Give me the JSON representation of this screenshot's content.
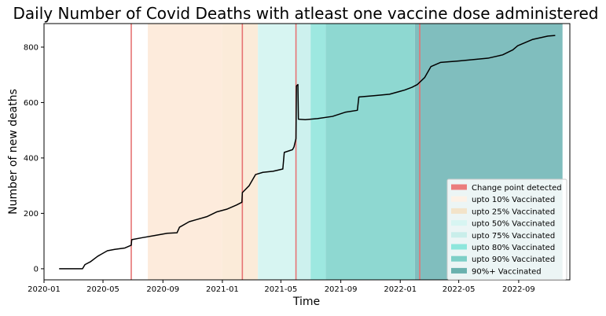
{
  "chart_data": {
    "type": "line",
    "title": "Daily Number of Covid Deaths with atleast one vaccine dose administered",
    "xlabel": "Time",
    "ylabel": "Number of new deaths",
    "xlim": [
      "2020-01-01",
      "2022-12-15"
    ],
    "ylim": [
      -40,
      885
    ],
    "x_ticks": [
      "2020-01",
      "2020-05",
      "2020-09",
      "2021-01",
      "2021-05",
      "2021-09",
      "2022-01",
      "2022-05",
      "2022-09"
    ],
    "y_ticks": [
      0,
      200,
      400,
      600,
      800
    ],
    "legend_position": "bottom-right",
    "series": [
      {
        "color": "#000000",
        "x": [
          "2020-02-01",
          "2020-03-20",
          "2020-03-25",
          "2020-04-05",
          "2020-04-20",
          "2020-05-10",
          "2020-05-25",
          "2020-06-15",
          "2020-06-28",
          "2020-06-29",
          "2020-07-20",
          "2020-08-15",
          "2020-09-10",
          "2020-09-30",
          "2020-10-05",
          "2020-10-25",
          "2020-11-10",
          "2020-11-30",
          "2020-12-20",
          "2021-01-10",
          "2021-01-30",
          "2021-02-10",
          "2021-02-11",
          "2021-02-25",
          "2021-03-10",
          "2021-03-25",
          "2021-04-15",
          "2021-05-05",
          "2021-05-08",
          "2021-05-25",
          "2021-05-28",
          "2021-06-01",
          "2021-06-02",
          "2021-06-05",
          "2021-06-06",
          "2021-06-20",
          "2021-07-15",
          "2021-08-15",
          "2021-09-10",
          "2021-10-05",
          "2021-10-08",
          "2021-11-10",
          "2021-12-10",
          "2022-01-10",
          "2022-01-25",
          "2022-02-05",
          "2022-02-20",
          "2022-03-05",
          "2022-03-25",
          "2022-04-30",
          "2022-06-30",
          "2022-07-30",
          "2022-08-20",
          "2022-08-30",
          "2022-09-30",
          "2022-10-31",
          "2022-11-15"
        ],
        "values": [
          0,
          0,
          15,
          25,
          45,
          65,
          70,
          75,
          85,
          105,
          112,
          120,
          128,
          130,
          150,
          170,
          178,
          188,
          205,
          215,
          230,
          240,
          275,
          300,
          340,
          348,
          352,
          360,
          420,
          430,
          440,
          470,
          660,
          665,
          540,
          538,
          542,
          550,
          565,
          572,
          620,
          625,
          630,
          645,
          655,
          665,
          690,
          730,
          745,
          750,
          760,
          772,
          790,
          805,
          828,
          840,
          842
        ]
      }
    ],
    "change_points": [
      "2020-06-28",
      "2021-02-11",
      "2021-06-01",
      "2022-02-10"
    ],
    "vaccination_bands": [
      {
        "label": "upto 10% Vaccinated",
        "start": "2020-08-01",
        "end": "2020-12-31",
        "color": "#fdebdc"
      },
      {
        "label": "upto 25% Vaccinated",
        "start": "2020-12-31",
        "end": "2021-03-15",
        "color": "#fbebd9"
      },
      {
        "label": "upto 50% Vaccinated",
        "start": "2021-03-15",
        "end": "2021-06-01",
        "color": "#d7f5f2"
      },
      {
        "label": "upto 75% Vaccinated",
        "start": "2021-06-01",
        "end": "2021-07-01",
        "color": "#cdf1ee"
      },
      {
        "label": "upto 80% Vaccinated",
        "start": "2021-07-01",
        "end": "2021-08-01",
        "color": "#9de8e0"
      },
      {
        "label": "upto 90% Vaccinated",
        "start": "2021-08-01",
        "end": "2022-01-31",
        "color": "#8ed8d1"
      },
      {
        "label": "90%+ Vaccinated",
        "start": "2022-01-31",
        "end": "2022-11-30",
        "color": "#80bebe"
      }
    ],
    "change_point_color": "#e67373",
    "legend": [
      {
        "label": "Change point detected",
        "color": "#eb7d7d"
      },
      {
        "label": "upto 10% Vaccinated",
        "color": "#fdf1e6"
      },
      {
        "label": "upto 25% Vaccinated",
        "color": "#f3e3c9"
      },
      {
        "label": "upto 50% Vaccinated",
        "color": "#d7f5f2"
      },
      {
        "label": "upto 75% Vaccinated",
        "color": "#c9eeea"
      },
      {
        "label": "upto 80% Vaccinated",
        "color": "#8ee6dc"
      },
      {
        "label": "upto 90% Vaccinated",
        "color": "#7dcfc7"
      },
      {
        "label": "90%+ Vaccinated",
        "color": "#6ab1ae"
      }
    ]
  }
}
